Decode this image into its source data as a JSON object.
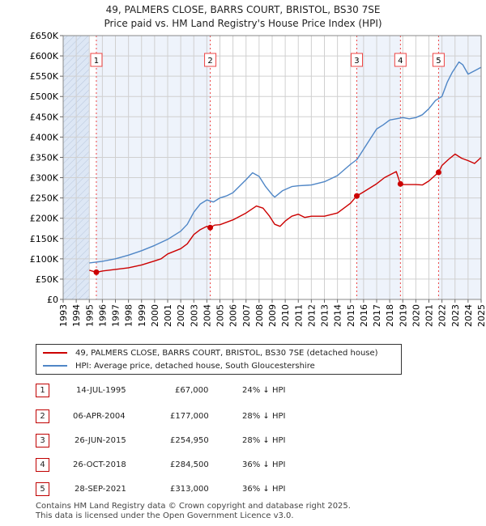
{
  "title_line1": "49, PALMERS CLOSE, BARRS COURT, BRISTOL, BS30 7SE",
  "title_line2": "Price paid vs. HM Land Registry's House Price Index (HPI)",
  "colors": {
    "property": "#cc0000",
    "hpi": "#4f86c6",
    "shade": "#dde7f5",
    "grid": "#d0d0d0",
    "vline": "#ee4444"
  },
  "chart_data": {
    "type": "line",
    "title": "49, PALMERS CLOSE, BARRS COURT, BRISTOL, BS30 7SE",
    "subtitle": "Price paid vs. HM Land Registry's House Price Index (HPI)",
    "xlabel": "",
    "ylabel": "",
    "xlim": [
      1993,
      2025
    ],
    "ylim": [
      0,
      650000
    ],
    "y_ticks": [
      0,
      50000,
      100000,
      150000,
      200000,
      250000,
      300000,
      350000,
      400000,
      450000,
      500000,
      550000,
      600000,
      650000
    ],
    "y_tick_labels": [
      "£0",
      "£50K",
      "£100K",
      "£150K",
      "£200K",
      "£250K",
      "£300K",
      "£350K",
      "£400K",
      "£450K",
      "£500K",
      "£550K",
      "£600K",
      "£650K"
    ],
    "x_ticks": [
      "1993",
      "1994",
      "1995",
      "1996",
      "1997",
      "1998",
      "1999",
      "2000",
      "2001",
      "2002",
      "2003",
      "2004",
      "2005",
      "2006",
      "2007",
      "2008",
      "2009",
      "2010",
      "2011",
      "2012",
      "2013",
      "2014",
      "2015",
      "2016",
      "2017",
      "2018",
      "2019",
      "2020",
      "2021",
      "2022",
      "2023",
      "2024",
      "2025"
    ],
    "shaded_ranges": [
      [
        1993,
        1995.0
      ],
      [
        2025.0,
        2025.0
      ]
    ],
    "grid": true,
    "series": [
      {
        "name": "49, PALMERS CLOSE, BARRS COURT, BRISTOL, BS30 7SE (detached house)",
        "color": "#cc0000",
        "x": [
          1995.0,
          1995.54,
          1996,
          1997,
          1998,
          1999,
          2000,
          2000.5,
          2001,
          2002,
          2002.5,
          2003,
          2003.5,
          2004.0,
          2004.26,
          2004.6,
          2005,
          2006,
          2007,
          2007.8,
          2008.3,
          2008.8,
          2009.2,
          2009.6,
          2010,
          2010.5,
          2011,
          2011.5,
          2012,
          2013,
          2014,
          2015.0,
          2015.48,
          2016,
          2017,
          2017.6,
          2018.5,
          2018.82,
          2019,
          2020,
          2020.5,
          2021,
          2021.74,
          2022,
          2022.5,
          2023,
          2023.5,
          2024,
          2024.5,
          2025
        ],
        "y": [
          72000,
          67000,
          70000,
          74000,
          78000,
          85000,
          95000,
          100000,
          112000,
          125000,
          137000,
          160000,
          172000,
          180000,
          177000,
          183000,
          184000,
          196000,
          213000,
          230000,
          225000,
          205000,
          185000,
          180000,
          193000,
          205000,
          210000,
          202000,
          205000,
          205000,
          213000,
          237000,
          254950,
          265000,
          285000,
          300000,
          315000,
          284500,
          283000,
          283000,
          282000,
          292000,
          313000,
          330000,
          345000,
          358000,
          348000,
          342000,
          335000,
          350000
        ]
      },
      {
        "name": "HPI: Average price, detached house, South Gloucestershire",
        "color": "#4f86c6",
        "x": [
          1995.0,
          1996,
          1997,
          1998,
          1999,
          2000,
          2001,
          2002,
          2002.5,
          2003,
          2003.5,
          2004,
          2004.5,
          2005,
          2005.5,
          2006,
          2007,
          2007.5,
          2008,
          2008.5,
          2009,
          2009.2,
          2009.8,
          2010.5,
          2011,
          2012,
          2013,
          2014,
          2015,
          2015.5,
          2016,
          2016.5,
          2017,
          2017.5,
          2018,
          2018.5,
          2019,
          2019.5,
          2020,
          2020.5,
          2021,
          2021.5,
          2022,
          2022.4,
          2022.8,
          2023,
          2023.3,
          2023.6,
          2024,
          2024.3,
          2024.6,
          2025
        ],
        "y": [
          90000,
          94000,
          100000,
          109000,
          120000,
          133000,
          148000,
          168000,
          185000,
          215000,
          235000,
          245000,
          240000,
          250000,
          255000,
          263000,
          295000,
          312000,
          303000,
          278000,
          258000,
          252000,
          268000,
          278000,
          280000,
          282000,
          290000,
          305000,
          333000,
          345000,
          370000,
          395000,
          420000,
          430000,
          442000,
          445000,
          448000,
          445000,
          448000,
          455000,
          470000,
          490000,
          500000,
          535000,
          560000,
          570000,
          585000,
          578000,
          555000,
          560000,
          565000,
          572000
        ]
      }
    ],
    "transactions": [
      {
        "n": "1",
        "x": 1995.54,
        "date": "14-JUL-1995",
        "price": "£67,000",
        "price_value": 67000,
        "hpi": "24% ↓ HPI"
      },
      {
        "n": "2",
        "x": 2004.26,
        "date": "06-APR-2004",
        "price": "£177,000",
        "price_value": 177000,
        "hpi": "28% ↓ HPI"
      },
      {
        "n": "3",
        "x": 2015.48,
        "date": "26-JUN-2015",
        "price": "£254,950",
        "price_value": 254950,
        "hpi": "28% ↓ HPI"
      },
      {
        "n": "4",
        "x": 2018.82,
        "date": "26-OCT-2018",
        "price": "£284,500",
        "price_value": 284500,
        "hpi": "36% ↓ HPI"
      },
      {
        "n": "5",
        "x": 2021.74,
        "date": "28-SEP-2021",
        "price": "£313,000",
        "price_value": 313000,
        "hpi": "36% ↓ HPI"
      }
    ]
  },
  "legend": {
    "property": "49, PALMERS CLOSE, BARRS COURT, BRISTOL, BS30 7SE (detached house)",
    "hpi": "HPI: Average price, detached house, South Gloucestershire"
  },
  "footer_line1": "Contains HM Land Registry data © Crown copyright and database right 2025.",
  "footer_line2": "This data is licensed under the Open Government Licence v3.0."
}
